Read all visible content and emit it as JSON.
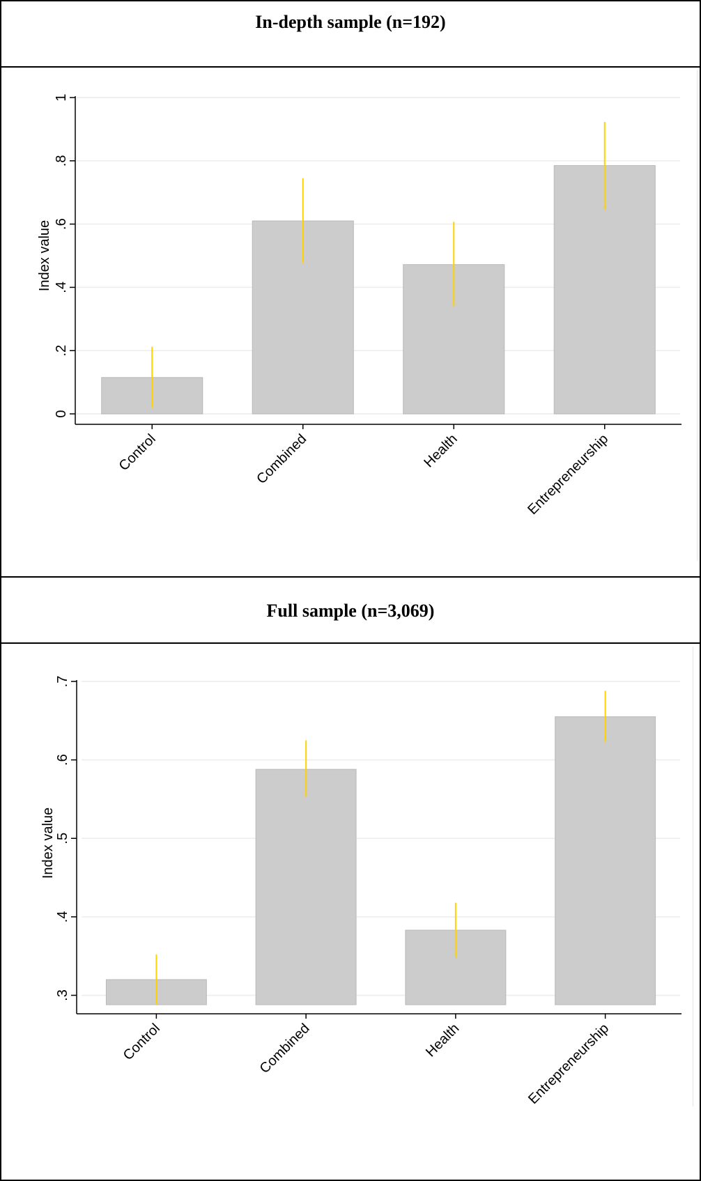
{
  "panels": [
    {
      "heading": "In-depth sample (n=192)"
    },
    {
      "heading": "Full sample (n=3,069)"
    }
  ],
  "colors": {
    "bar_fill": "#cccccc",
    "bar_stroke": "#b8b8b8",
    "error_bar": "#ffd200",
    "grid": "#ececec",
    "axis": "#000000"
  },
  "chart_data": [
    {
      "type": "bar",
      "title": "",
      "ylabel": "Index value",
      "xlabel": "",
      "categories": [
        "Control",
        "Combined",
        "Health",
        "Entrepreneurship"
      ],
      "values": [
        0.115,
        0.61,
        0.472,
        0.785
      ],
      "ci_low": [
        0.02,
        0.478,
        0.34,
        0.645
      ],
      "ci_high": [
        0.212,
        0.745,
        0.607,
        0.923
      ],
      "ylim": [
        0,
        1
      ],
      "yticks": [
        0,
        0.2,
        0.4,
        0.6,
        0.8,
        1
      ],
      "ytick_labels": [
        "0",
        ".2",
        ".4",
        ".6",
        ".8",
        "1"
      ],
      "grid": true
    },
    {
      "type": "bar",
      "title": "",
      "ylabel": "Index value",
      "xlabel": "",
      "categories": [
        "Control",
        "Combined",
        "Health",
        "Entrepreneurship"
      ],
      "values": [
        0.32,
        0.588,
        0.383,
        0.655
      ],
      "ci_low": [
        0.288,
        0.553,
        0.348,
        0.623
      ],
      "ci_high": [
        0.352,
        0.625,
        0.418,
        0.688
      ],
      "ylim": [
        0.288,
        0.7
      ],
      "yticks": [
        0.3,
        0.4,
        0.5,
        0.6,
        0.7
      ],
      "ytick_labels": [
        ".3",
        ".4",
        ".5",
        ".6",
        ".7"
      ],
      "grid": true
    }
  ]
}
